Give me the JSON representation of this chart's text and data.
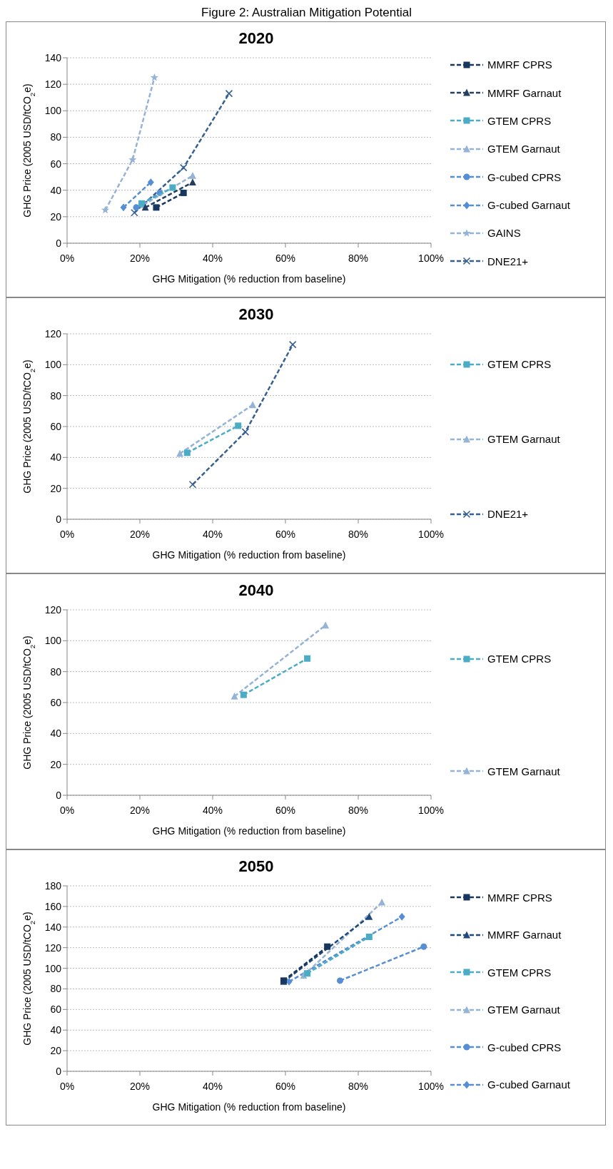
{
  "chart_data": [
    {
      "type": "line",
      "title": "2020",
      "xlabel": "GHG Mitigation (% reduction from baseline)",
      "ylabel": "GHG Price (2005 USD/tCO$_{2}$e)",
      "annotations": [
        "Figure 2: Australian Mitigation Potential"
      ],
      "xlim": [
        0,
        100
      ],
      "ylim": [
        0,
        140
      ],
      "xticks": [
        {
          "value": 0,
          "label": "0%"
        },
        {
          "value": 20,
          "label": "20%"
        },
        {
          "value": 40,
          "label": "40%"
        },
        {
          "value": 60,
          "label": "60%"
        },
        {
          "value": 80,
          "label": "80%"
        },
        {
          "value": 100,
          "label": "100%"
        }
      ],
      "yticks": [
        0,
        20,
        40,
        60,
        80,
        100,
        120,
        140
      ],
      "grid": "y",
      "legend": "right",
      "line_style": "dashed",
      "series": [
        {
          "name": "MMRF CPRS",
          "color": "#17375e",
          "marker": "square",
          "x": [
            24.5,
            32
          ],
          "values": [
            27,
            38
          ]
        },
        {
          "name": "MMRF Garnaut",
          "color": "#243f60",
          "marker": "triangle",
          "x": [
            21.5,
            34.5
          ],
          "values": [
            27,
            46
          ]
        },
        {
          "name": "GTEM CPRS",
          "color": "#4bacc6",
          "marker": "square",
          "x": [
            20.5,
            29
          ],
          "values": [
            30,
            42
          ]
        },
        {
          "name": "GTEM Garnaut",
          "color": "#95b3d7",
          "marker": "triangle",
          "x": [
            21,
            34.5
          ],
          "values": [
            29,
            51
          ]
        },
        {
          "name": "G-cubed CPRS",
          "color": "#558ed5",
          "marker": "circle",
          "x": [
            19,
            25.5
          ],
          "values": [
            27,
            38
          ]
        },
        {
          "name": "G-cubed Garnaut",
          "color": "#558ed5",
          "marker": "diamond",
          "x": [
            15.5,
            23
          ],
          "values": [
            27,
            46
          ]
        },
        {
          "name": "GAINS",
          "color": "#95b3d7",
          "marker": "star",
          "x": [
            10.5,
            18,
            24
          ],
          "values": [
            25,
            63,
            125
          ]
        },
        {
          "name": "DNE21+",
          "color": "#366092",
          "marker": "cross",
          "x": [
            18.5,
            32,
            44.5
          ],
          "values": [
            23,
            57,
            113
          ]
        }
      ]
    },
    {
      "type": "line",
      "title": "2030",
      "xlabel": "GHG Mitigation (% reduction from baseline)",
      "ylabel": "GHG Price (2005 USD/tCO$_{2}$e)",
      "xlim": [
        0,
        100
      ],
      "ylim": [
        0,
        120
      ],
      "xticks": [
        {
          "value": 0,
          "label": "0%"
        },
        {
          "value": 20,
          "label": "20%"
        },
        {
          "value": 40,
          "label": "40%"
        },
        {
          "value": 60,
          "label": "60%"
        },
        {
          "value": 80,
          "label": "80%"
        },
        {
          "value": 100,
          "label": "100%"
        }
      ],
      "yticks": [
        0,
        20,
        40,
        60,
        80,
        100,
        120
      ],
      "grid": "y",
      "legend": "right",
      "line_style": "dashed",
      "series": [
        {
          "name": "GTEM CPRS",
          "color": "#4bacc6",
          "marker": "square",
          "x": [
            33,
            47
          ],
          "values": [
            43,
            60.5
          ]
        },
        {
          "name": "GTEM Garnaut",
          "color": "#95b3d7",
          "marker": "triangle",
          "x": [
            31,
            51
          ],
          "values": [
            42.5,
            74
          ]
        },
        {
          "name": "DNE21+",
          "color": "#366092",
          "marker": "cross",
          "x": [
            34.5,
            49,
            62
          ],
          "values": [
            22.5,
            56.5,
            113
          ]
        }
      ]
    },
    {
      "type": "line",
      "title": "2040",
      "xlabel": "GHG Mitigation (% reduction from baseline)",
      "ylabel": "GHG Price (2005 USD/tCO$_{2}$e)",
      "xlim": [
        0,
        100
      ],
      "ylim": [
        0,
        120
      ],
      "xticks": [
        {
          "value": 0,
          "label": "0%"
        },
        {
          "value": 20,
          "label": "20%"
        },
        {
          "value": 40,
          "label": "40%"
        },
        {
          "value": 60,
          "label": "60%"
        },
        {
          "value": 80,
          "label": "80%"
        },
        {
          "value": 100,
          "label": "100%"
        }
      ],
      "yticks": [
        0,
        20,
        40,
        60,
        80,
        100,
        120
      ],
      "grid": "y",
      "legend": "right",
      "line_style": "dashed",
      "series": [
        {
          "name": "GTEM CPRS",
          "color": "#4bacc6",
          "marker": "square",
          "x": [
            48.5,
            66
          ],
          "values": [
            65,
            88.5
          ]
        },
        {
          "name": "GTEM Garnaut",
          "color": "#95b3d7",
          "marker": "triangle",
          "x": [
            46,
            71
          ],
          "values": [
            64,
            110
          ]
        }
      ]
    },
    {
      "type": "line",
      "title": "2050",
      "xlabel": "GHG Mitigation (% reduction from baseline)",
      "ylabel": "GHG Price (2005 USD/tCO$_{2}$e)",
      "xlim": [
        0,
        100
      ],
      "ylim": [
        0,
        180
      ],
      "xticks": [
        {
          "value": 0,
          "label": "0%"
        },
        {
          "value": 20,
          "label": "20%"
        },
        {
          "value": 40,
          "label": "40%"
        },
        {
          "value": 60,
          "label": "60%"
        },
        {
          "value": 80,
          "label": "80%"
        },
        {
          "value": 100,
          "label": "100%"
        }
      ],
      "yticks": [
        0,
        20,
        40,
        60,
        80,
        100,
        120,
        140,
        160,
        180
      ],
      "grid": "y",
      "legend": "right",
      "line_style": "dashed",
      "series": [
        {
          "name": "MMRF CPRS",
          "color": "#17375e",
          "marker": "square",
          "x": [
            59.5,
            71.5
          ],
          "values": [
            88,
            121
          ]
        },
        {
          "name": "MMRF Garnaut",
          "color": "#1f497d",
          "marker": "triangle",
          "x": [
            59.5,
            83
          ],
          "values": [
            87,
            150
          ]
        },
        {
          "name": "GTEM CPRS",
          "color": "#4bacc6",
          "marker": "square",
          "x": [
            66,
            83
          ],
          "values": [
            95,
            130.5
          ]
        },
        {
          "name": "GTEM Garnaut",
          "color": "#95b3d7",
          "marker": "triangle",
          "x": [
            65,
            86.5
          ],
          "values": [
            93,
            164
          ]
        },
        {
          "name": "G-cubed CPRS",
          "color": "#558ed5",
          "marker": "circle",
          "x": [
            75,
            98
          ],
          "values": [
            88,
            121
          ]
        },
        {
          "name": "G-cubed Garnaut",
          "color": "#558ed5",
          "marker": "diamond",
          "x": [
            61,
            92
          ],
          "values": [
            87,
            150
          ]
        }
      ]
    }
  ]
}
